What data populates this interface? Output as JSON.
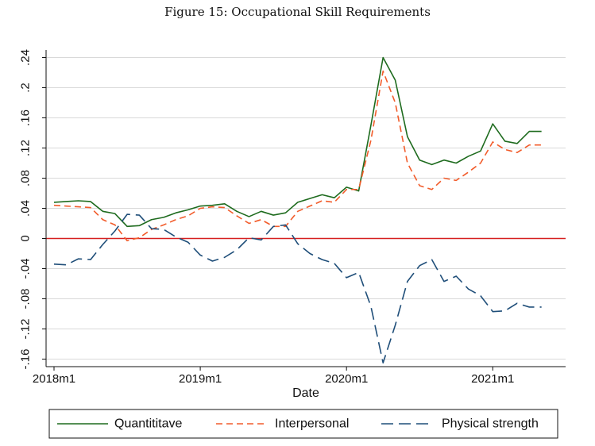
{
  "figure_title": "Figure 15:  Occupational Skill Requirements",
  "colors": {
    "quantitative": "#1e6b1e",
    "interpersonal": "#f25c2b",
    "physical": "#1f4e79",
    "zero_line": "#d62020",
    "grid": "#d9d9d9"
  },
  "chart_data": {
    "type": "line",
    "title": "Figure 15:  Occupational Skill Requirements",
    "xlabel": "Date",
    "ylabel": "",
    "xlim": [
      0,
      41
    ],
    "ylim": [
      -0.17,
      0.25
    ],
    "x_ticks": [
      {
        "x": 0,
        "label": "2018m1"
      },
      {
        "x": 12,
        "label": "2019m1"
      },
      {
        "x": 24,
        "label": "2020m1"
      },
      {
        "x": 36,
        "label": "2021m1"
      }
    ],
    "y_ticks": [
      {
        "y": 0.24,
        "label": ".24"
      },
      {
        "y": 0.2,
        "label": ".2"
      },
      {
        "y": 0.16,
        "label": ".16"
      },
      {
        "y": 0.12,
        "label": ".12"
      },
      {
        "y": 0.08,
        "label": ".08"
      },
      {
        "y": 0.04,
        "label": ".04"
      },
      {
        "y": 0,
        "label": "0"
      },
      {
        "y": -0.04,
        "label": "-.04"
      },
      {
        "y": -0.08,
        "label": "-.08"
      },
      {
        "y": -0.12,
        "label": "-.12"
      },
      {
        "y": -0.16,
        "label": "-.16"
      }
    ],
    "x": [
      0,
      1,
      2,
      3,
      4,
      5,
      6,
      7,
      8,
      9,
      10,
      11,
      12,
      13,
      14,
      15,
      16,
      17,
      18,
      19,
      20,
      21,
      22,
      23,
      24,
      25,
      26,
      27,
      28,
      29,
      30,
      31,
      32,
      33,
      34,
      35,
      36,
      37,
      38,
      39,
      40
    ],
    "series": [
      {
        "name": "Quantititave",
        "color_key": "quantitative",
        "dash": "",
        "values": [
          0.048,
          0.049,
          0.05,
          0.049,
          0.036,
          0.033,
          0.016,
          0.017,
          0.025,
          0.028,
          0.034,
          0.038,
          0.043,
          0.044,
          0.046,
          0.036,
          0.029,
          0.036,
          0.031,
          0.034,
          0.048,
          0.053,
          0.058,
          0.054,
          0.068,
          0.063,
          0.15,
          0.24,
          0.21,
          0.135,
          0.104,
          0.098,
          0.104,
          0.1,
          0.109,
          0.116,
          0.152,
          0.129,
          0.126,
          0.142,
          0.142
        ]
      },
      {
        "name": "Interpersonal",
        "color_key": "interpersonal",
        "dash": "8,5",
        "values": [
          0.044,
          0.043,
          0.042,
          0.041,
          0.025,
          0.018,
          -0.003,
          0.001,
          0.012,
          0.018,
          0.025,
          0.03,
          0.04,
          0.042,
          0.041,
          0.03,
          0.02,
          0.025,
          0.016,
          0.016,
          0.036,
          0.043,
          0.05,
          0.048,
          0.065,
          0.065,
          0.13,
          0.222,
          0.18,
          0.1,
          0.07,
          0.065,
          0.08,
          0.077,
          0.088,
          0.1,
          0.128,
          0.118,
          0.114,
          0.124,
          0.124
        ]
      },
      {
        "name": "Physical strength",
        "color_key": "physical",
        "dash": "15,7",
        "values": [
          -0.034,
          -0.035,
          -0.027,
          -0.028,
          -0.008,
          0.01,
          0.032,
          0.031,
          0.013,
          0.012,
          0.002,
          -0.005,
          -0.022,
          -0.03,
          -0.025,
          -0.015,
          0.001,
          -0.002,
          0.016,
          0.018,
          -0.007,
          -0.02,
          -0.028,
          -0.033,
          -0.052,
          -0.045,
          -0.09,
          -0.165,
          -0.115,
          -0.057,
          -0.036,
          -0.028,
          -0.057,
          -0.05,
          -0.067,
          -0.076,
          -0.097,
          -0.096,
          -0.086,
          -0.091,
          -0.091
        ]
      }
    ],
    "reference_line": {
      "y": 0
    },
    "legend": {
      "placement": "bottom",
      "entries": [
        "Quantititave",
        "Interpersonal",
        "Physical strength"
      ]
    },
    "grid": true
  }
}
